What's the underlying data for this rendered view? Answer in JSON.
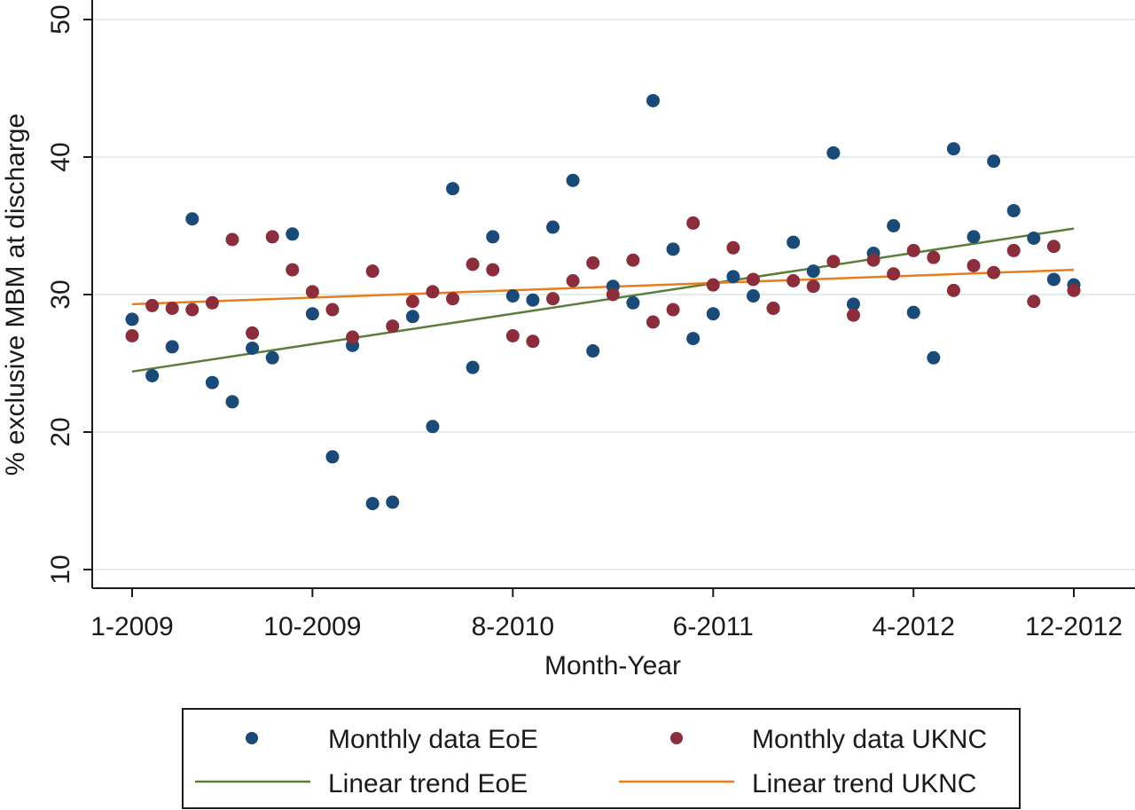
{
  "chart_data": {
    "type": "scatter",
    "xlabel": "Month-Year",
    "ylabel": "% exclusive MBM at discharge",
    "x_ticks": [
      {
        "index": 0,
        "label": "1-2009"
      },
      {
        "index": 9,
        "label": "10-2009"
      },
      {
        "index": 19,
        "label": "8-2010"
      },
      {
        "index": 29,
        "label": "6-2011"
      },
      {
        "index": 39,
        "label": "4-2012"
      },
      {
        "index": 47,
        "label": "12-2012"
      }
    ],
    "y_ticks": [
      10,
      20,
      30,
      40,
      50
    ],
    "ylim": [
      8.6,
      50
    ],
    "x_months": [
      "1-2009",
      "2-2009",
      "3-2009",
      "4-2009",
      "5-2009",
      "6-2009",
      "7-2009",
      "8-2009",
      "9-2009",
      "10-2009",
      "11-2009",
      "12-2009",
      "1-2010",
      "2-2010",
      "3-2010",
      "4-2010",
      "5-2010",
      "6-2010",
      "7-2010",
      "8-2010",
      "9-2010",
      "10-2010",
      "11-2010",
      "12-2010",
      "1-2011",
      "2-2011",
      "3-2011",
      "4-2011",
      "5-2011",
      "6-2011",
      "7-2011",
      "8-2011",
      "9-2011",
      "10-2011",
      "11-2011",
      "12-2011",
      "1-2012",
      "2-2012",
      "3-2012",
      "4-2012",
      "5-2012",
      "6-2012",
      "7-2012",
      "8-2012",
      "9-2012",
      "10-2012",
      "11-2012",
      "12-2012"
    ],
    "grid": true,
    "legend_position": "bottom",
    "series": [
      {
        "name": "Monthly data EoE",
        "kind": "scatter",
        "color": "#1a4a78",
        "values": [
          28.2,
          24.1,
          26.2,
          35.5,
          23.6,
          22.2,
          26.1,
          25.4,
          34.4,
          28.6,
          18.2,
          26.3,
          14.8,
          14.9,
          28.4,
          20.4,
          37.7,
          24.7,
          34.2,
          29.9,
          29.6,
          34.9,
          38.3,
          25.9,
          30.6,
          29.4,
          44.1,
          33.3,
          26.8,
          28.6,
          31.3,
          29.9,
          29.0,
          33.8,
          31.7,
          40.3,
          29.3,
          33.0,
          35.0,
          28.7,
          25.4,
          40.6,
          34.2,
          39.7,
          36.1,
          34.1,
          31.1,
          30.7
        ]
      },
      {
        "name": "Monthly data UKNC",
        "kind": "scatter",
        "color": "#8b2d3a",
        "values": [
          27.0,
          29.2,
          29.0,
          28.9,
          29.4,
          34.0,
          27.2,
          34.2,
          31.8,
          30.2,
          28.9,
          26.9,
          31.7,
          27.7,
          29.5,
          30.2,
          29.7,
          32.2,
          31.8,
          27.0,
          26.6,
          29.7,
          31.0,
          32.3,
          30.0,
          32.5,
          28.0,
          28.9,
          35.2,
          30.7,
          33.4,
          31.1,
          29.0,
          31.0,
          30.6,
          32.4,
          28.5,
          32.5,
          31.5,
          33.2,
          32.7,
          30.3,
          32.1,
          31.6,
          33.2,
          29.5,
          33.5,
          30.3
        ]
      },
      {
        "name": "Linear trend EoE",
        "kind": "line",
        "color": "#5a7d3a",
        "start": 24.4,
        "end": 34.8
      },
      {
        "name": "Linear trend UKNC",
        "kind": "line",
        "color": "#e87d1e",
        "start": 29.3,
        "end": 31.8
      }
    ]
  }
}
